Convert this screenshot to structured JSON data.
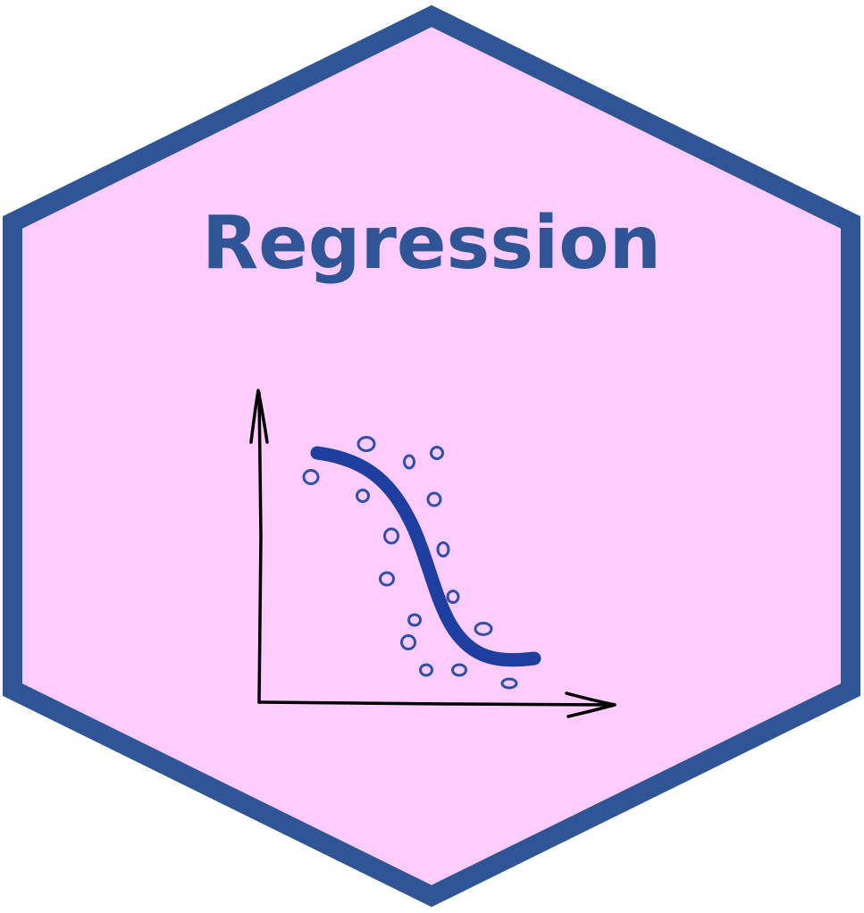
{
  "title": "Regression",
  "colors": {
    "hex_fill": "#FFCCFF",
    "hex_border": "#2F5597",
    "title": "#2F5597",
    "curve": "#1F3FA0",
    "points": "#2F4FA8",
    "axes": "#000000"
  },
  "icons": {
    "chart": "sigmoid-regression-sketch-icon"
  }
}
